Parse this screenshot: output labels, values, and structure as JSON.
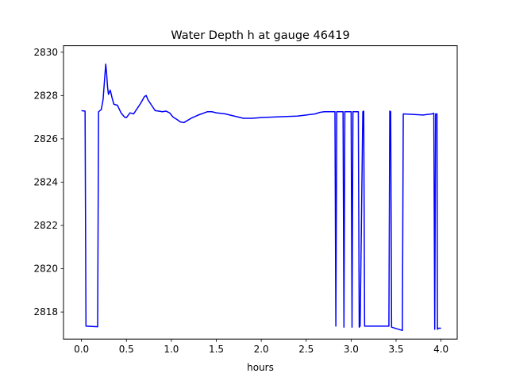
{
  "chart_data": {
    "type": "line",
    "title": "Water Depth h at gauge 46419",
    "xlabel": "hours",
    "ylabel": "",
    "xlim": [
      -0.2,
      4.18
    ],
    "ylim": [
      2816.75,
      2830.3
    ],
    "xticks": [
      0.0,
      0.5,
      1.0,
      1.5,
      2.0,
      2.5,
      3.0,
      3.5,
      4.0
    ],
    "xtick_labels": [
      "0.0",
      "0.5",
      "1.0",
      "1.5",
      "2.0",
      "2.5",
      "3.0",
      "3.5",
      "4.0"
    ],
    "yticks": [
      2818,
      2820,
      2822,
      2824,
      2826,
      2828,
      2830
    ],
    "ytick_labels": [
      "2818",
      "2820",
      "2822",
      "2824",
      "2826",
      "2828",
      "2830"
    ],
    "grid": false,
    "legend": "none",
    "colors": {
      "line": "#0000ff",
      "axes": "#000000",
      "background": "#ffffff"
    },
    "series": [
      {
        "x": [
          0.0,
          0.04,
          0.05,
          0.18,
          0.19,
          0.22,
          0.24,
          0.26,
          0.27,
          0.28,
          0.29,
          0.3,
          0.32,
          0.34,
          0.36,
          0.4,
          0.44,
          0.48,
          0.5,
          0.54,
          0.58,
          0.62,
          0.66,
          0.7,
          0.72,
          0.74,
          0.78,
          0.82,
          0.86,
          0.9,
          0.94,
          0.98,
          1.02,
          1.06,
          1.1,
          1.14,
          1.18,
          1.22,
          1.3,
          1.4,
          1.45,
          1.5,
          1.6,
          1.7,
          1.8,
          1.9,
          2.0,
          2.2,
          2.4,
          2.5,
          2.6,
          2.65,
          2.7,
          2.8,
          2.82,
          2.83,
          2.84,
          2.85,
          2.91,
          2.92,
          2.93,
          2.94,
          3.0,
          3.01,
          3.02,
          3.03,
          3.08,
          3.09,
          3.1,
          3.13,
          3.14,
          3.15,
          3.16,
          3.3,
          3.42,
          3.43,
          3.44,
          3.45,
          3.57,
          3.58,
          3.8,
          3.9,
          3.92,
          3.93,
          3.94,
          3.955,
          3.96,
          3.97,
          4.0
        ],
        "values": [
          2827.3,
          2827.28,
          2817.35,
          2817.32,
          2827.25,
          2827.35,
          2827.8,
          2828.9,
          2829.45,
          2829.0,
          2828.4,
          2828.05,
          2828.25,
          2827.9,
          2827.6,
          2827.55,
          2827.2,
          2827.0,
          2826.98,
          2827.2,
          2827.15,
          2827.4,
          2827.65,
          2827.95,
          2828.0,
          2827.8,
          2827.55,
          2827.3,
          2827.28,
          2827.25,
          2827.28,
          2827.2,
          2827.0,
          2826.9,
          2826.78,
          2826.75,
          2826.85,
          2826.95,
          2827.1,
          2827.25,
          2827.25,
          2827.2,
          2827.15,
          2827.05,
          2826.95,
          2826.95,
          2826.98,
          2827.02,
          2827.05,
          2827.1,
          2827.15,
          2827.22,
          2827.25,
          2827.25,
          2827.25,
          2817.35,
          2827.25,
          2827.25,
          2827.25,
          2817.3,
          2827.25,
          2827.25,
          2827.25,
          2817.3,
          2827.25,
          2827.25,
          2827.25,
          2817.3,
          2817.35,
          2827.25,
          2827.28,
          2817.35,
          2817.35,
          2817.35,
          2817.35,
          2827.28,
          2827.25,
          2817.3,
          2817.15,
          2827.15,
          2827.1,
          2827.15,
          2827.18,
          2817.2,
          2827.15,
          2827.15,
          2817.2,
          2817.25,
          2817.25
        ]
      }
    ]
  }
}
